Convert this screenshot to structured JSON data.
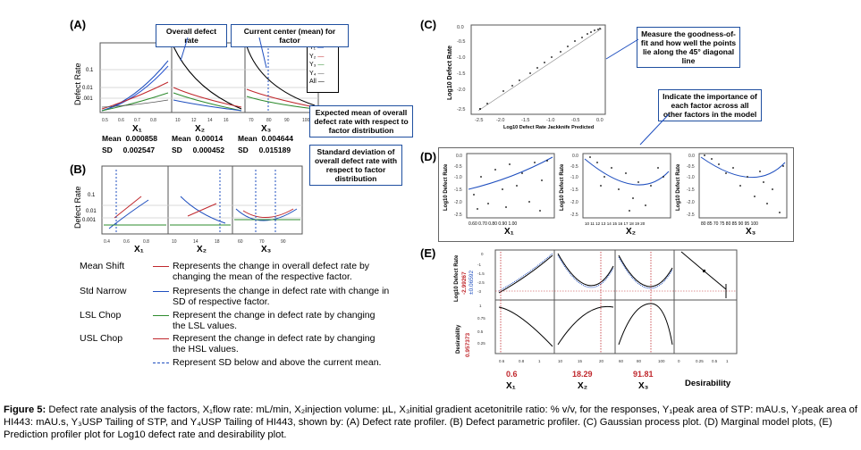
{
  "panels": {
    "A": {
      "letter": "(A)",
      "ylabel": "Defect Rate",
      "yticks": [
        "0.1",
        "0.01",
        ".001"
      ],
      "callout_overall": "Overall defect rate",
      "callout_center": "Current center (mean) for factor",
      "legend": [
        "Y₁",
        "Y₂",
        "Y₃",
        "Y₄",
        "All"
      ],
      "factors": [
        {
          "label": "X₁",
          "mean_label": "Mean",
          "mean": "0.000858",
          "sd_label": "SD",
          "sd": "0.002547"
        },
        {
          "label": "X₂",
          "mean_label": "Mean",
          "mean": "0.00014",
          "sd_label": "SD",
          "sd": "0.000452"
        },
        {
          "label": "X₃",
          "mean_label": "Mean",
          "mean": "0.004644",
          "sd_label": "SD",
          "sd": "0.015189"
        }
      ],
      "callout_expected": "Expected mean of overall defect rate  with respect to factor distribution",
      "callout_sd": "Standard deviation of overall defect rate  with respect to factor distribution"
    },
    "B": {
      "letter": "(B)",
      "ylabel": "Defect Rate",
      "yticks": [
        "0.1",
        "0.01",
        "0.001"
      ],
      "factors": [
        "X₁",
        "X₂",
        "X₃"
      ]
    },
    "C": {
      "letter": "(C)",
      "ylabel": "Log10 Defect Rate",
      "xlabel": "Log10 Defect Rate Jackknife Predicted",
      "yticks": [
        "0.0",
        "-0.5",
        "-1.0",
        "-1.5",
        "-2.0",
        "-2.5"
      ],
      "xticks": [
        "-2.5",
        "-2.0",
        "-1.5",
        "-1.0",
        "-0.5",
        "0.0"
      ],
      "callout_fit": "Measure the  goodness-of-fit and how well the  points lie along the 45° diagonal line"
    },
    "D": {
      "letter": "(D)",
      "callout_importance": "Indicate the importance of each factor across all other factors  in the model",
      "plots": [
        {
          "ylabel": "Log10 Defect Rate",
          "xticks": "0.60  0.70  0.80  0.90  1.00",
          "factor": "X₁"
        },
        {
          "ylabel": "Log10 Defect Rate",
          "xticks": "10 11 12 13 14 15 16 17 18 19 20",
          "factor": "X₂"
        },
        {
          "ylabel": "Log10 Defect Rate",
          "xticks": "80  85  70  75  80  85  90  95 100",
          "factor": "X₃"
        }
      ],
      "yticks": [
        "0.0",
        "-0.5",
        "-1.0",
        "-1.5",
        "-2.0",
        "-2.5"
      ]
    },
    "E": {
      "letter": "(E)",
      "ylabel_top": "Log10 Defect Rate",
      "value_top": "-2.99267",
      "value_top_pm": "±0.06592",
      "ylabel_bottom": "Desirability",
      "value_bottom": "0.957373",
      "factors": [
        {
          "label": "X₁",
          "value": "0.6"
        },
        {
          "label": "X₂",
          "value": "18.29"
        },
        {
          "label": "X₃",
          "value": "91.81"
        }
      ],
      "desirability_label": "Desirability"
    }
  },
  "legend_items": [
    {
      "name": "Mean Shift",
      "color": "#c0282d",
      "style": "solid",
      "text": "Represents the change in overall defect rate by changing the mean  of the respective factor."
    },
    {
      "name": "Std Narrow",
      "color": "#1f4fbf",
      "style": "solid",
      "text": "Represents the change in defect rate with change in SD of respective factor."
    },
    {
      "name": "LSL Chop",
      "color": "#2e8b2e",
      "style": "solid",
      "text": "Represent the change in defect rate by changing the LSL values."
    },
    {
      "name": "USL Chop",
      "color": "#c0282d",
      "style": "solid",
      "text": "Represent the change in defect rate by changing the HSL values."
    },
    {
      "name": "",
      "color": "#1f4fbf",
      "style": "dashed",
      "text": "Represent SD below and above the current mean."
    }
  ],
  "caption": {
    "label": "Figure 5:",
    "text": "Defect rate analysis of the factors, X₁flow rate: mL/min, X₂injection volume: µL, X₃initial gradient acetonitrile ratio: % v/v, for the responses, Y₁peak area of STP: mAU.s, Y₂peak area of HI443: mAU.s, Y₃USP Tailing of STP, and Y₄USP Tailing of HI443, shown by: (A) Defect rate profiler. (B) Defect parametric profiler. (C) Gaussian process plot. (D) Marginal model plots, (E) Prediction profiler plot for Log10 defect rate and desirability plot."
  },
  "colors": {
    "red": "#c0282d",
    "blue": "#1f4fbf",
    "green": "#2e8b2e",
    "callout_border": "#1f4fa0"
  }
}
